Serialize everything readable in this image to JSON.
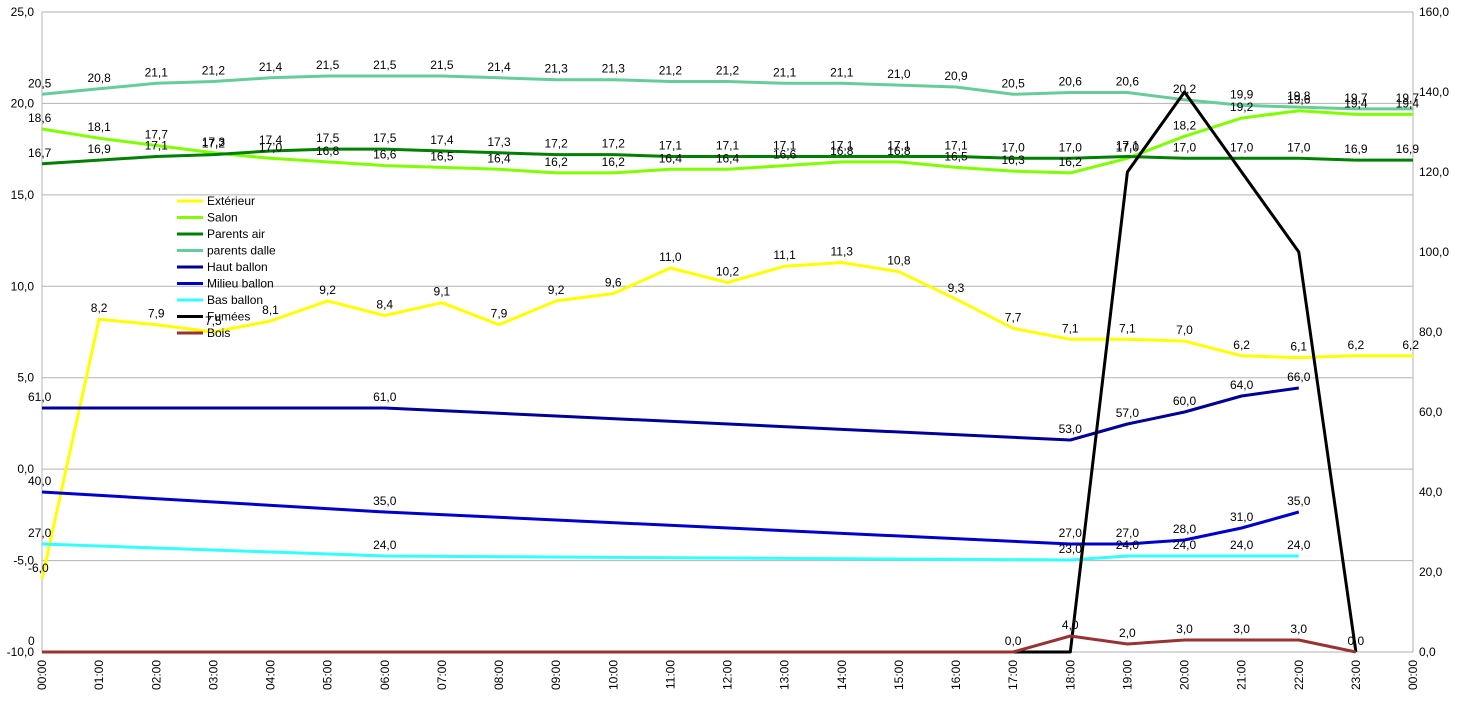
{
  "chart_data": {
    "type": "line",
    "title": "",
    "xlabel": "",
    "ylabel": "",
    "categories": [
      "00:00",
      "01:00",
      "02:00",
      "03:00",
      "04:00",
      "05:00",
      "06:00",
      "07:00",
      "08:00",
      "09:00",
      "10:00",
      "11:00",
      "12:00",
      "13:00",
      "14:00",
      "15:00",
      "16:00",
      "17:00",
      "18:00",
      "19:00",
      "20:00",
      "21:00",
      "22:00",
      "23:00",
      "00:00"
    ],
    "ylim": [
      -10,
      25
    ],
    "yticks": [
      -10,
      -5,
      0,
      5,
      10,
      15,
      20,
      25
    ],
    "y_tick_labels": [
      "-10,0",
      "-5,0",
      "0,0",
      "5,0",
      "10,0",
      "15,0",
      "20,0",
      "25,0"
    ],
    "y2lim": [
      0,
      160
    ],
    "y2ticks": [
      0,
      20,
      40,
      60,
      80,
      100,
      120,
      140,
      160
    ],
    "y2_tick_labels": [
      "0,0",
      "20,0",
      "40,0",
      "60,0",
      "80,0",
      "100,0",
      "120,0",
      "140,0",
      "160,0"
    ],
    "grid": true,
    "legend_position": "left",
    "series": [
      {
        "name": "Extérieur",
        "axis": "left",
        "color": "#ffff00",
        "values": [
          -6.0,
          8.2,
          7.9,
          7.5,
          8.1,
          9.2,
          8.4,
          9.1,
          7.9,
          9.2,
          9.6,
          11.0,
          10.2,
          11.1,
          11.3,
          10.8,
          9.3,
          7.7,
          7.1,
          7.1,
          7.0,
          6.2,
          6.1,
          6.2,
          6.2
        ],
        "labels": [
          "-6,0",
          "8,2",
          "7,9",
          "7,5",
          "8,1",
          "9,2",
          "8,4",
          "9,1",
          "7,9",
          "9,2",
          "9,6",
          "11,0",
          "10,2",
          "11,1",
          "11,3",
          "10,8",
          "9,3",
          "7,7",
          "7,1",
          "7,1",
          "7,0",
          "6,2",
          "6,1",
          "6,2",
          "6,2"
        ]
      },
      {
        "name": "Salon",
        "axis": "left",
        "color": "#80ff00",
        "values": [
          18.6,
          18.1,
          17.7,
          17.3,
          17.0,
          16.8,
          16.6,
          16.5,
          16.4,
          16.2,
          16.2,
          16.4,
          16.4,
          16.6,
          16.8,
          16.8,
          16.5,
          16.3,
          16.2,
          17.0,
          18.2,
          19.2,
          19.6,
          19.4,
          19.4
        ],
        "labels": [
          "18,6",
          "18,1",
          "17,7",
          "17,3",
          "17,0",
          "16,8",
          "16,6",
          "16,5",
          "16,4",
          "16,2",
          "16,2",
          "16,4",
          "16,4",
          "16,6",
          "16,8",
          "16,8",
          "16,5",
          "16,3",
          "16,2",
          "17,0",
          "18,2",
          "19,2",
          "19,6",
          "19,4",
          "19,4"
        ]
      },
      {
        "name": "Parents air",
        "axis": "left",
        "color": "#008000",
        "values": [
          16.7,
          16.9,
          17.1,
          17.2,
          17.4,
          17.5,
          17.5,
          17.4,
          17.3,
          17.2,
          17.2,
          17.1,
          17.1,
          17.1,
          17.1,
          17.1,
          17.1,
          17.0,
          17.0,
          17.1,
          17.0,
          17.0,
          17.0,
          16.9,
          16.9
        ],
        "labels": [
          "16,7",
          "16,9",
          "17,1",
          "17,2",
          "17,4",
          "17,5",
          "17,5",
          "17,4",
          "17,3",
          "17,2",
          "17,2",
          "17,1",
          "17,1",
          "17,1",
          "17,1",
          "17,1",
          "17,1",
          "17,0",
          "17,0",
          "17,1",
          "17,0",
          "17,0",
          "17,0",
          "16,9",
          "16,9"
        ]
      },
      {
        "name": "parents dalle",
        "axis": "left",
        "color": "#66cc99",
        "values": [
          20.5,
          20.8,
          21.1,
          21.2,
          21.4,
          21.5,
          21.5,
          21.5,
          21.4,
          21.3,
          21.3,
          21.2,
          21.2,
          21.1,
          21.1,
          21.0,
          20.9,
          20.5,
          20.6,
          20.6,
          20.2,
          19.9,
          19.8,
          19.7,
          19.7
        ],
        "labels": [
          "20,5",
          "20,8",
          "21,1",
          "21,2",
          "21,4",
          "21,5",
          "21,5",
          "21,5",
          "21,4",
          "21,3",
          "21,3",
          "21,2",
          "21,2",
          "21,1",
          "21,1",
          "21,0",
          "20,9",
          "20,5",
          "20,6",
          "20,6",
          "20,2",
          "19,9",
          "19,8",
          "19,7",
          "19,7"
        ]
      },
      {
        "name": "Haut ballon",
        "axis": "right",
        "color": "#000099",
        "points": [
          [
            0,
            61.0
          ],
          [
            6,
            61.0
          ],
          [
            18,
            53.0
          ],
          [
            19,
            57.0
          ],
          [
            20,
            60.0
          ],
          [
            21,
            64.0
          ],
          [
            22,
            66.0
          ]
        ],
        "labels": [
          "61,0",
          "61,0",
          "53,0",
          "57,0",
          "60,0",
          "64,0",
          "66,0"
        ]
      },
      {
        "name": "Milieu ballon",
        "axis": "right",
        "color": "#0000cc",
        "points": [
          [
            0,
            40.0
          ],
          [
            6,
            35.0
          ],
          [
            18,
            27.0
          ],
          [
            19,
            27.0
          ],
          [
            20,
            28.0
          ],
          [
            21,
            31.0
          ],
          [
            22,
            35.0
          ]
        ],
        "labels": [
          "40,0",
          "35,0",
          "27,0",
          "27,0",
          "28,0",
          "31,0",
          "35,0"
        ]
      },
      {
        "name": "Bas ballon",
        "axis": "right",
        "color": "#33ffff",
        "points": [
          [
            0,
            27.0
          ],
          [
            6,
            24.0
          ],
          [
            18,
            23.0
          ],
          [
            19,
            24.0
          ],
          [
            20,
            24.0
          ],
          [
            21,
            24.0
          ],
          [
            22,
            24.0
          ]
        ],
        "labels": [
          "27,0",
          "24,0",
          "23,0",
          "24,0",
          "24,0",
          "24,0",
          "24,0"
        ]
      },
      {
        "name": "Fumées",
        "axis": "right",
        "color": "#000000",
        "points": [
          [
            0,
            0
          ],
          [
            18,
            0
          ],
          [
            19,
            120
          ],
          [
            20,
            140
          ],
          [
            21,
            120
          ],
          [
            22,
            100
          ],
          [
            23,
            0
          ]
        ],
        "labels": []
      },
      {
        "name": "Bois",
        "axis": "right",
        "color": "#993333",
        "points": [
          [
            0,
            0
          ],
          [
            17,
            0.0
          ],
          [
            18,
            4.0
          ],
          [
            19,
            2.0
          ],
          [
            20,
            3.0
          ],
          [
            21,
            3.0
          ],
          [
            22,
            3.0
          ],
          [
            23,
            0.0
          ]
        ],
        "labels": [
          "0",
          "0,0",
          "4,0",
          "2,0",
          "3,0",
          "3,0",
          "3,0",
          "0,0"
        ]
      }
    ]
  }
}
